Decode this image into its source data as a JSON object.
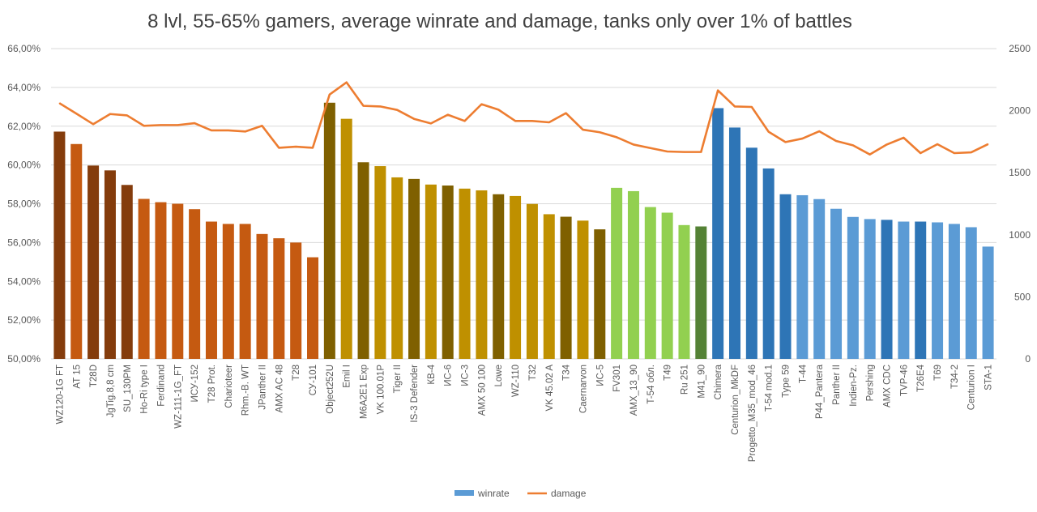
{
  "chart_data": {
    "type": "bar+line",
    "title": "8 lvl, 55-65% gamers, average winrate and damage, tanks only over 1% of battles",
    "xlabel": "",
    "ylabel_left": "",
    "ylabel_right": "",
    "ylim_left": [
      0.5,
      0.66
    ],
    "ylim_right": [
      0,
      2500
    ],
    "left_ticks": [
      "50,00%",
      "52,00%",
      "54,00%",
      "56,00%",
      "58,00%",
      "60,00%",
      "62,00%",
      "64,00%",
      "66,00%"
    ],
    "right_ticks": [
      "0",
      "500",
      "1000",
      "1500",
      "2000",
      "2500"
    ],
    "grid": true,
    "legend_position": "bottom",
    "legend": [
      "winrate",
      "damage"
    ],
    "categories": [
      "WZ120-1G FT",
      "AT 15",
      "T28D",
      "JgTig.8,8 cm",
      "SU_130PM",
      "Ho-Ri type I",
      "Ferdinand",
      "WZ-111-1G_FT",
      "ИСУ-152",
      "T28 Prot.",
      "Charioteer",
      "Rhm.-B. WT",
      "JPanther II",
      "AMX AC 48",
      "T28",
      "СУ-101",
      "Object252U",
      "Emil I",
      "M6A2E1 Exp",
      "VK 100.01P",
      "Tiger II",
      "IS-3 Defender",
      "КВ-4",
      "ИС-6",
      "ИС-3",
      "AMX 50 100",
      "Lowe",
      "WZ-110",
      "T32",
      "VK 45.02 A",
      "T34",
      "Caernarvon",
      "ИС-5",
      "FV301",
      "AMX_13_90",
      "T-54 обл.",
      "T49",
      "Ru 251",
      "M41_90",
      "Chimera",
      "Centurion_MkDF",
      "Progetto_M35_mod_46",
      "T-54 mod.1",
      "Type 59",
      "T-44",
      "P44_Pantera",
      "Panther II",
      "Indien-Pz.",
      "Pershing",
      "AMX CDC",
      "TVP-46",
      "T26E4",
      "T69",
      "T34-2",
      "Centurion I",
      "STA-1"
    ],
    "series": [
      {
        "name": "winrate",
        "type": "bar",
        "axis": "left",
        "values": [
          0.6172,
          0.6108,
          0.5997,
          0.5972,
          0.5897,
          0.5825,
          0.5808,
          0.58,
          0.5772,
          0.5708,
          0.5696,
          0.5696,
          0.5644,
          0.5622,
          0.56,
          0.5524,
          0.6321,
          0.6238,
          0.6014,
          0.5994,
          0.5936,
          0.5928,
          0.5899,
          0.5894,
          0.5878,
          0.5869,
          0.5849,
          0.584,
          0.5799,
          0.5746,
          0.5733,
          0.5713,
          0.5668,
          0.5882,
          0.5865,
          0.5783,
          0.5754,
          0.569,
          0.5683,
          0.6293,
          0.6193,
          0.6089,
          0.5982,
          0.5849,
          0.5844,
          0.5824,
          0.5774,
          0.5732,
          0.5721,
          0.5717,
          0.5708,
          0.5708,
          0.5704,
          0.5696,
          0.5679,
          0.5579
        ]
      },
      {
        "name": "damage",
        "type": "line",
        "axis": "right",
        "values": [
          2060,
          1976,
          1891,
          1973,
          1962,
          1878,
          1884,
          1884,
          1899,
          1841,
          1841,
          1832,
          1878,
          1701,
          1710,
          1701,
          2130,
          2228,
          2039,
          2034,
          2006,
          1934,
          1897,
          1967,
          1917,
          2052,
          2008,
          1917,
          1917,
          1906,
          1980,
          1847,
          1826,
          1786,
          1727,
          1699,
          1671,
          1667,
          1667,
          2163,
          2034,
          2030,
          1830,
          1747,
          1775,
          1834,
          1756,
          1721,
          1647,
          1727,
          1782,
          1658,
          1730,
          1658,
          1664,
          1730
        ]
      }
    ],
    "bar_colors": [
      "#843C0C",
      "#C55A11",
      "#843C0C",
      "#843C0C",
      "#843C0C",
      "#C55A11",
      "#C55A11",
      "#C55A11",
      "#C55A11",
      "#C55A11",
      "#C55A11",
      "#C55A11",
      "#C55A11",
      "#C55A11",
      "#C55A11",
      "#C55A11",
      "#7F6000",
      "#BF9000",
      "#7F6000",
      "#BF9000",
      "#BF9000",
      "#7F6000",
      "#BF9000",
      "#7F6000",
      "#BF9000",
      "#BF9000",
      "#7F6000",
      "#BF9000",
      "#BF9000",
      "#BF9000",
      "#7F6000",
      "#BF9000",
      "#7F6000",
      "#92D050",
      "#92D050",
      "#92D050",
      "#92D050",
      "#92D050",
      "#548235",
      "#2E75B6",
      "#2E75B6",
      "#2E75B6",
      "#2E75B6",
      "#2E75B6",
      "#5B9BD5",
      "#5B9BD5",
      "#5B9BD5",
      "#5B9BD5",
      "#5B9BD5",
      "#2E75B6",
      "#5B9BD5",
      "#2E75B6",
      "#5B9BD5",
      "#5B9BD5",
      "#5B9BD5",
      "#5B9BD5"
    ],
    "colors": {
      "line": "#ED7D31",
      "legend_winrate": "#5B9BD5",
      "grid": "#D9D9D9"
    }
  }
}
